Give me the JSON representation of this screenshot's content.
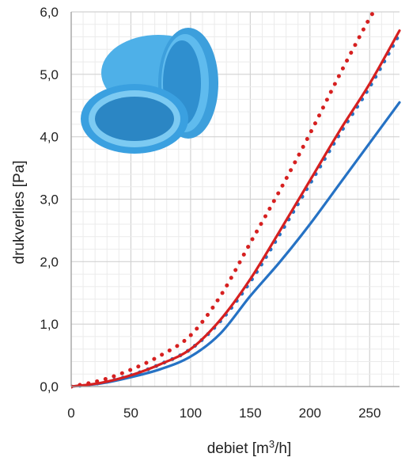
{
  "chart_data": {
    "type": "line",
    "title": "",
    "xlabel": "debiet [m³/h]",
    "ylabel": "drukverlies [Pa]",
    "xlim": [
      0,
      275
    ],
    "ylim": [
      0,
      6
    ],
    "x_ticks": [
      "0",
      "50",
      "100",
      "150",
      "200",
      "250"
    ],
    "y_ticks": [
      "0,0",
      "1,0",
      "2,0",
      "3,0",
      "4,0",
      "5,0",
      "6,0"
    ],
    "grid": true,
    "series": [
      {
        "style": "solid",
        "color": "#2672c4",
        "x": [
          0,
          25,
          50,
          75,
          100,
          125,
          150,
          175,
          200,
          225,
          250,
          275
        ],
        "y": [
          0,
          0.05,
          0.15,
          0.28,
          0.48,
          0.85,
          1.45,
          2.0,
          2.6,
          3.25,
          3.9,
          4.55
        ]
      },
      {
        "style": "dotted",
        "color": "#2672c4",
        "x": [
          0,
          25,
          50,
          75,
          100,
          125,
          150,
          175,
          200,
          225,
          250,
          275
        ],
        "y": [
          0,
          0.06,
          0.18,
          0.36,
          0.6,
          1.05,
          1.68,
          2.45,
          3.25,
          4.05,
          4.8,
          5.65
        ]
      },
      {
        "style": "solid",
        "color": "#d62020",
        "x": [
          0,
          25,
          50,
          75,
          100,
          125,
          150,
          175,
          200,
          225,
          250,
          275
        ],
        "y": [
          0,
          0.06,
          0.18,
          0.36,
          0.6,
          1.07,
          1.72,
          2.5,
          3.3,
          4.1,
          4.85,
          5.7
        ]
      },
      {
        "style": "dotted",
        "color": "#d62020",
        "x": [
          0,
          25,
          50,
          75,
          100,
          125,
          150,
          175,
          200,
          225,
          250,
          255
        ],
        "y": [
          0,
          0.1,
          0.27,
          0.5,
          0.82,
          1.45,
          2.3,
          3.15,
          4.05,
          5.0,
          5.9,
          6.0
        ]
      }
    ],
    "image": {
      "name": "blue-oval-duct-adapter",
      "color": "#3aa0e0"
    }
  }
}
